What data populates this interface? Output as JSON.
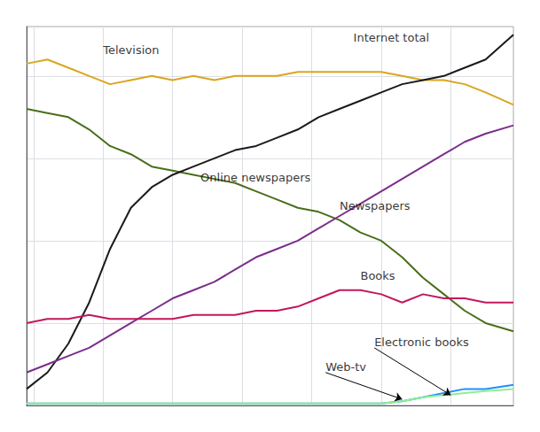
{
  "chart_data": {
    "type": "line",
    "x": [
      9,
      12,
      15,
      18,
      21,
      24,
      27,
      30,
      33,
      36,
      39,
      42,
      45,
      48,
      51,
      54,
      57,
      60,
      63,
      66,
      69,
      72,
      75,
      79
    ],
    "series": [
      {
        "color": "#DAA520",
        "values": [
          83,
          84,
          82,
          80,
          78,
          79,
          80,
          79,
          80,
          79,
          80,
          80,
          80,
          81,
          81,
          81,
          81,
          81,
          80,
          79,
          79,
          78,
          76,
          73
        ]
      },
      {
        "color": "#4A6E1A",
        "values": [
          72,
          71,
          70,
          67,
          63,
          61,
          58,
          57,
          56,
          55,
          54,
          52,
          50,
          48,
          47,
          45,
          42,
          40,
          36,
          31,
          27,
          23,
          20,
          18
        ]
      },
      {
        "color": "#1a1a1a",
        "values": [
          4,
          8,
          15,
          25,
          38,
          48,
          53,
          56,
          58,
          60,
          62,
          63,
          65,
          67,
          70,
          72,
          74,
          76,
          78,
          79,
          80,
          82,
          84,
          90
        ]
      },
      {
        "color": "#7B2D8B",
        "values": [
          8,
          10,
          12,
          14,
          17,
          20,
          23,
          26,
          28,
          30,
          33,
          36,
          38,
          40,
          43,
          46,
          49,
          52,
          55,
          58,
          61,
          64,
          66,
          68
        ]
      },
      {
        "color": "#C2185B",
        "values": [
          20,
          21,
          21,
          22,
          21,
          21,
          21,
          21,
          22,
          22,
          22,
          23,
          23,
          24,
          26,
          28,
          28,
          27,
          25,
          27,
          26,
          26,
          25,
          25
        ]
      },
      {
        "color": "#1E90FF",
        "values": [
          0.5,
          0.5,
          0.5,
          0.5,
          0.5,
          0.5,
          0.5,
          0.5,
          0.5,
          0.5,
          0.5,
          0.5,
          0.5,
          0.5,
          0.5,
          0.5,
          0.5,
          0.5,
          1,
          2,
          3,
          4,
          4,
          5
        ]
      },
      {
        "color": "#90EE90",
        "values": [
          0.5,
          0.5,
          0.5,
          0.5,
          0.5,
          0.5,
          0.5,
          0.5,
          0.5,
          0.5,
          0.5,
          0.5,
          0.5,
          0.5,
          0.5,
          0.5,
          0.5,
          0.5,
          1,
          2,
          2.5,
          3,
          3.5,
          4
        ]
      }
    ],
    "annotations": [
      {
        "text": "Television",
        "x": 20,
        "y": 85
      },
      {
        "text": "Internet total",
        "x": 56,
        "y": 88
      },
      {
        "text": "Newspapers",
        "x": 54,
        "y": 47
      },
      {
        "text": "Online newspapers",
        "x": 34,
        "y": 54
      },
      {
        "text": "Books",
        "x": 57,
        "y": 30
      },
      {
        "text": "Web-tv",
        "x": 52,
        "y": 8,
        "arrow_x": 63,
        "arrow_y": 1.5
      },
      {
        "text": "Electronic books",
        "x": 59,
        "y": 14,
        "arrow_x": 70,
        "arrow_y": 2.5
      }
    ],
    "xlim": [
      9,
      79
    ],
    "xticks": [
      10,
      20,
      30,
      40,
      50,
      60,
      70
    ],
    "ylim": [
      0,
      92
    ],
    "yticks": [
      0,
      20,
      40,
      60,
      80
    ],
    "grid": true,
    "tick_labels": false
  }
}
